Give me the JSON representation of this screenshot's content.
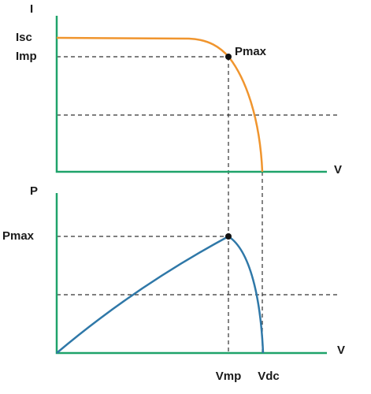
{
  "iv_chart": {
    "y_axis_label": "I",
    "x_axis_label": "V",
    "short_circuit_current_label": "Isc",
    "max_power_current_label": "Imp",
    "point_label": "Pmax"
  },
  "pv_chart": {
    "y_axis_label": "P",
    "x_axis_label": "V",
    "max_power_label": "Pmax"
  },
  "x_labels": {
    "max_power_voltage": "Vmp",
    "open_circuit_voltage": "Vdc"
  }
}
